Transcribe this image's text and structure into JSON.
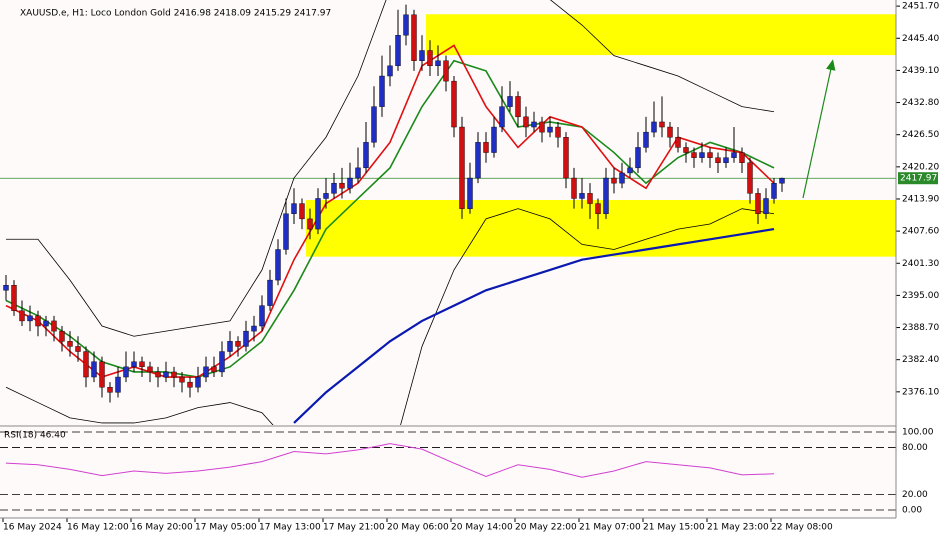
{
  "chart_data": {
    "type": "candlestick",
    "title": "XAUUSD.e, H1:  Loco London Gold  2416.98 2418.09 2415.29 2417.97",
    "bull_color": "#1f2fc4",
    "bear_color": "#d01010",
    "background": "#fffafa",
    "ylim": [
      2369.6,
      2452.9
    ],
    "yticks": [
      {
        "value": 2451.7,
        "label": "2451.70"
      },
      {
        "value": 2445.4,
        "label": "2445.40"
      },
      {
        "value": 2439.1,
        "label": "2439.10"
      },
      {
        "value": 2432.8,
        "label": "2432.80"
      },
      {
        "value": 2426.5,
        "label": "2426.50"
      },
      {
        "value": 2420.2,
        "label": "2420.20"
      },
      {
        "value": 2413.9,
        "label": "2413.90"
      },
      {
        "value": 2407.6,
        "label": "2407.60"
      },
      {
        "value": 2401.3,
        "label": "2401.30"
      },
      {
        "value": 2395,
        "label": "2395.00"
      },
      {
        "value": 2388.7,
        "label": "2388.70"
      },
      {
        "value": 2382.4,
        "label": "2382.40"
      },
      {
        "value": 2376.1,
        "label": "2376.10"
      }
    ],
    "xticks": [
      {
        "value": 0,
        "label": "16 May 2024"
      },
      {
        "value": 8,
        "label": "16 May 12:00"
      },
      {
        "value": 16,
        "label": "16 May 20:00"
      },
      {
        "value": 24,
        "label": "17 May 05:00"
      },
      {
        "value": 32,
        "label": "17 May 13:00"
      },
      {
        "value": 40,
        "label": "17 May 21:00"
      },
      {
        "value": 48,
        "label": "20 May 06:00"
      },
      {
        "value": 56,
        "label": "20 May 14:00"
      },
      {
        "value": 64,
        "label": "20 May 22:00"
      },
      {
        "value": 72,
        "label": "21 May 07:00"
      },
      {
        "value": 80,
        "label": "21 May 15:00"
      },
      {
        "value": 88,
        "label": "21 May 23:00"
      },
      {
        "value": 96,
        "label": "22 May 08:00"
      }
    ],
    "last_price": 2417.97,
    "last_price_color": "#2a8a2a",
    "zones": [
      {
        "low": 2442.1,
        "high": 2450.1,
        "start": 53,
        "color": "#ffff00"
      },
      {
        "low": 2402.6,
        "high": 2413.7,
        "start": 38,
        "color": "#ffff00"
      }
    ],
    "candles": [
      [
        2396,
        2399,
        2394,
        2397
      ],
      [
        2397,
        2398,
        2391,
        2392
      ],
      [
        2392,
        2394,
        2389,
        2390
      ],
      [
        2390,
        2393,
        2388,
        2391
      ],
      [
        2391,
        2392,
        2387,
        2389
      ],
      [
        2389,
        2391,
        2387,
        2390
      ],
      [
        2390,
        2391,
        2386,
        2388
      ],
      [
        2388,
        2389,
        2384,
        2386
      ],
      [
        2386,
        2388,
        2383,
        2385
      ],
      [
        2385,
        2387,
        2382,
        2384
      ],
      [
        2384,
        2385,
        2377,
        2379
      ],
      [
        2379,
        2384,
        2378,
        2382
      ],
      [
        2382,
        2383,
        2375,
        2377
      ],
      [
        2377,
        2378,
        2374,
        2376
      ],
      [
        2376,
        2381,
        2375,
        2379
      ],
      [
        2379,
        2384,
        2378,
        2381
      ],
      [
        2381,
        2384,
        2380,
        2382
      ],
      [
        2382,
        2383,
        2379,
        2381
      ],
      [
        2381,
        2382,
        2378,
        2380
      ],
      [
        2380,
        2381,
        2377,
        2379
      ],
      [
        2379,
        2382,
        2378,
        2380
      ],
      [
        2380,
        2381,
        2377,
        2379
      ],
      [
        2379,
        2380,
        2376,
        2378
      ],
      [
        2378,
        2379,
        2375,
        2377
      ],
      [
        2377,
        2381,
        2376,
        2379
      ],
      [
        2379,
        2383,
        2378,
        2381
      ],
      [
        2381,
        2383,
        2379,
        2380
      ],
      [
        2380,
        2386,
        2379,
        2384
      ],
      [
        2384,
        2388,
        2383,
        2386
      ],
      [
        2386,
        2387,
        2383,
        2385
      ],
      [
        2385,
        2390,
        2384,
        2388
      ],
      [
        2388,
        2391,
        2386,
        2389
      ],
      [
        2389,
        2395,
        2388,
        2393
      ],
      [
        2393,
        2400,
        2392,
        2398
      ],
      [
        2398,
        2406,
        2397,
        2404
      ],
      [
        2404,
        2414,
        2403,
        2411
      ],
      [
        2411,
        2416,
        2409,
        2413
      ],
      [
        2413,
        2414,
        2408,
        2410
      ],
      [
        2410,
        2412,
        2406,
        2408
      ],
      [
        2408,
        2416,
        2407,
        2414
      ],
      [
        2414,
        2418,
        2412,
        2415
      ],
      [
        2415,
        2419,
        2414,
        2417
      ],
      [
        2417,
        2420,
        2414,
        2416
      ],
      [
        2416,
        2421,
        2415,
        2418
      ],
      [
        2418,
        2424,
        2417,
        2420
      ],
      [
        2420,
        2429,
        2419,
        2425
      ],
      [
        2425,
        2436,
        2424,
        2432
      ],
      [
        2432,
        2442,
        2430,
        2438
      ],
      [
        2438,
        2444,
        2436,
        2440
      ],
      [
        2440,
        2451,
        2439,
        2446
      ],
      [
        2446,
        2452,
        2444,
        2450
      ],
      [
        2450,
        2451,
        2439,
        2441
      ],
      [
        2441,
        2446,
        2439,
        2443
      ],
      [
        2443,
        2445,
        2438,
        2440
      ],
      [
        2440,
        2444,
        2438,
        2441
      ],
      [
        2441,
        2442,
        2435,
        2437
      ],
      [
        2437,
        2438,
        2426,
        2428
      ],
      [
        2428,
        2430,
        2410,
        2412
      ],
      [
        2412,
        2421,
        2411,
        2418
      ],
      [
        2418,
        2427,
        2417,
        2425
      ],
      [
        2425,
        2427,
        2421,
        2423
      ],
      [
        2423,
        2430,
        2422,
        2428
      ],
      [
        2428,
        2436,
        2427,
        2432
      ],
      [
        2432,
        2437,
        2431,
        2434
      ],
      [
        2434,
        2435,
        2428,
        2430
      ],
      [
        2430,
        2432,
        2426,
        2428
      ],
      [
        2428,
        2431,
        2427,
        2429
      ],
      [
        2429,
        2430,
        2425,
        2427
      ],
      [
        2427,
        2430,
        2426,
        2428
      ],
      [
        2428,
        2429,
        2424,
        2426
      ],
      [
        2426,
        2427,
        2416,
        2418
      ],
      [
        2418,
        2420,
        2412,
        2414
      ],
      [
        2414,
        2418,
        2412,
        2415
      ],
      [
        2415,
        2417,
        2410,
        2413
      ],
      [
        2413,
        2414,
        2408,
        2411
      ],
      [
        2411,
        2420,
        2410,
        2418
      ],
      [
        2418,
        2420,
        2415,
        2417
      ],
      [
        2417,
        2421,
        2416,
        2419
      ],
      [
        2419,
        2422,
        2418,
        2420
      ],
      [
        2420,
        2427,
        2419,
        2424
      ],
      [
        2424,
        2430,
        2423,
        2427
      ],
      [
        2427,
        2433,
        2426,
        2429
      ],
      [
        2429,
        2434,
        2426,
        2428
      ],
      [
        2428,
        2429,
        2424,
        2426
      ],
      [
        2426,
        2428,
        2423,
        2424
      ],
      [
        2424,
        2425,
        2421,
        2423
      ],
      [
        2423,
        2424,
        2420,
        2422
      ],
      [
        2422,
        2425,
        2421,
        2423
      ],
      [
        2423,
        2424,
        2420,
        2422
      ],
      [
        2422,
        2423,
        2419,
        2421
      ],
      [
        2421,
        2424,
        2420,
        2422
      ],
      [
        2422,
        2428,
        2421,
        2423
      ],
      [
        2423,
        2424,
        2419,
        2421
      ],
      [
        2421,
        2422,
        2413,
        2415
      ],
      [
        2415,
        2416,
        2409,
        2411
      ],
      [
        2411,
        2416,
        2410,
        2414
      ],
      [
        2414,
        2418,
        2413,
        2417
      ],
      [
        2416.98,
        2418.09,
        2415.29,
        2417.97
      ]
    ],
    "indicator_x": [
      0,
      4,
      8,
      12,
      16,
      20,
      24,
      28,
      32,
      36,
      40,
      44,
      48,
      52,
      56,
      60,
      64,
      68,
      72,
      76,
      80,
      84,
      88,
      92,
      96
    ],
    "indicators": [
      {
        "color": "#000000",
        "width": 0.8,
        "values": [
          2406,
          2406,
          2398,
          2389,
          2387,
          2388,
          2389,
          2390,
          2400,
          2418,
          2426,
          2438,
          2455,
          2460,
          2460,
          2460,
          2458,
          2453,
          2448,
          2442,
          2440,
          2438,
          2435,
          2432,
          2431
        ]
      },
      {
        "color": "#000000",
        "width": 0.8,
        "values": [
          2377,
          2374,
          2371,
          2370,
          2370,
          2371,
          2373,
          2374,
          2372,
          2365,
          2362,
          2360,
          2362,
          2385,
          2400,
          2410,
          2412,
          2410,
          2405,
          2404,
          2406,
          2408,
          2409,
          2412,
          2411
        ]
      },
      {
        "color": "#0a1ab0",
        "width": 2.2,
        "values": [
          null,
          null,
          null,
          null,
          null,
          null,
          null,
          null,
          null,
          2370,
          2376,
          2381,
          2386,
          2390,
          2393,
          2396,
          2398,
          2400,
          2402,
          2403,
          2404,
          2405,
          2406,
          2407,
          2408
        ]
      },
      {
        "color": "#1a8a1a",
        "width": 1.6,
        "values": [
          2394,
          2391,
          2387,
          2382,
          2380,
          2380,
          2379,
          2381,
          2386,
          2396,
          2408,
          2414,
          2420,
          2432,
          2441,
          2439,
          2428,
          2429,
          2428,
          2423,
          2417,
          2422,
          2425,
          2423,
          2420
        ]
      },
      {
        "color": "#e01010",
        "width": 1.6,
        "values": [
          2393,
          2390,
          2384,
          2379,
          2381,
          2379,
          2379,
          2383,
          2388,
          2402,
          2413,
          2417,
          2425,
          2440,
          2444,
          2432,
          2424,
          2430,
          2428,
          2420,
          2416,
          2426,
          2424,
          2423,
          2417
        ]
      }
    ],
    "rsi": {
      "label": "RSI(18) 46.40",
      "color": "#d040d0",
      "ylim": [
        -10.3,
        105.1
      ],
      "yticks": [
        {
          "value": 100,
          "label": "100.00"
        },
        {
          "value": 80,
          "label": "80.00"
        },
        {
          "value": 20,
          "label": "20.00"
        },
        {
          "value": 0,
          "label": "0.00"
        }
      ],
      "values": [
        60,
        58,
        52,
        44,
        50,
        47,
        50,
        55,
        62,
        75,
        72,
        77,
        85,
        78,
        60,
        43,
        58,
        52,
        42,
        50,
        62,
        58,
        54,
        45,
        46.4
      ]
    }
  }
}
